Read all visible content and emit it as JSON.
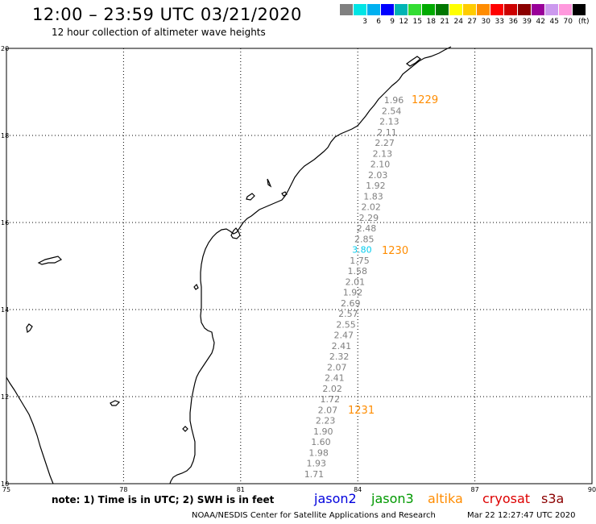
{
  "header": {
    "title": "12:00 – 23:59 UTC 03/21/2020",
    "subtitle": "12 hour collection of altimeter wave heights"
  },
  "legend": {
    "unit": "(ft)",
    "items": [
      {
        "label": "",
        "color": "#808080"
      },
      {
        "label": "3",
        "color": "#00e5e5"
      },
      {
        "label": "6",
        "color": "#00b0f0"
      },
      {
        "label": "9",
        "color": "#0000ff"
      },
      {
        "label": "12",
        "color": "#00b4b4"
      },
      {
        "label": "15",
        "color": "#33dd33"
      },
      {
        "label": "18",
        "color": "#00aa00"
      },
      {
        "label": "21",
        "color": "#007700"
      },
      {
        "label": "24",
        "color": "#ffff00"
      },
      {
        "label": "27",
        "color": "#ffcc00"
      },
      {
        "label": "30",
        "color": "#ff8c00"
      },
      {
        "label": "33",
        "color": "#ff0000"
      },
      {
        "label": "36",
        "color": "#cc0000"
      },
      {
        "label": "39",
        "color": "#8b0000"
      },
      {
        "label": "42",
        "color": "#990099"
      },
      {
        "label": "45",
        "color": "#cc99ee"
      },
      {
        "label": "70",
        "color": "#ff99dd"
      },
      {
        "label": "",
        "color": "#000000"
      }
    ]
  },
  "map": {
    "lon_ticks": [
      "75",
      "78",
      "81",
      "84",
      "87",
      "90"
    ],
    "lat_ticks": [
      "10",
      "12",
      "14",
      "16",
      "18",
      "20"
    ],
    "lon_range": [
      75,
      90
    ],
    "lat_range": [
      10,
      20
    ],
    "pass_labels": [
      {
        "text": "1229",
        "color": "#ff8c00"
      },
      {
        "text": "1230",
        "color": "#ff8c00"
      },
      {
        "text": "1231",
        "color": "#ff8c00"
      }
    ],
    "track_values": [
      {
        "text": "1.96",
        "color": "#808080"
      },
      {
        "text": "2.54",
        "color": "#808080"
      },
      {
        "text": "2.13",
        "color": "#808080"
      },
      {
        "text": "2.11",
        "color": "#808080"
      },
      {
        "text": "2.27",
        "color": "#808080"
      },
      {
        "text": "2.13",
        "color": "#808080"
      },
      {
        "text": "2.10",
        "color": "#808080"
      },
      {
        "text": "2.03",
        "color": "#808080"
      },
      {
        "text": "1.92",
        "color": "#808080"
      },
      {
        "text": "1.83",
        "color": "#808080"
      },
      {
        "text": "2.02",
        "color": "#808080"
      },
      {
        "text": "2.29",
        "color": "#808080"
      },
      {
        "text": "2.48",
        "color": "#808080"
      },
      {
        "text": "2.85",
        "color": "#808080"
      },
      {
        "text": "3.80",
        "color": "#00ccee"
      },
      {
        "text": "1.75",
        "color": "#808080"
      },
      {
        "text": "1.58",
        "color": "#808080"
      },
      {
        "text": "2.01",
        "color": "#808080"
      },
      {
        "text": "1.92",
        "color": "#808080"
      },
      {
        "text": "2.69",
        "color": "#808080"
      },
      {
        "text": "2.57",
        "color": "#808080"
      },
      {
        "text": "2.55",
        "color": "#808080"
      },
      {
        "text": "2.47",
        "color": "#808080"
      },
      {
        "text": "2.41",
        "color": "#808080"
      },
      {
        "text": "2.32",
        "color": "#808080"
      },
      {
        "text": "2.07",
        "color": "#808080"
      },
      {
        "text": "2.41",
        "color": "#808080"
      },
      {
        "text": "2.02",
        "color": "#808080"
      },
      {
        "text": "1.72",
        "color": "#808080"
      },
      {
        "text": "2.07",
        "color": "#808080"
      },
      {
        "text": "2.23",
        "color": "#808080"
      },
      {
        "text": "1.90",
        "color": "#808080"
      },
      {
        "text": "1.60",
        "color": "#808080"
      },
      {
        "text": "1.98",
        "color": "#808080"
      },
      {
        "text": "1.93",
        "color": "#808080"
      },
      {
        "text": "1.71",
        "color": "#808080"
      }
    ]
  },
  "footer": {
    "note": "note: 1) Time is in UTC; 2) SWH is in feet",
    "satellites": [
      {
        "name": "jason2",
        "color": "#0000dd"
      },
      {
        "name": "jason3",
        "color": "#009900"
      },
      {
        "name": "altika",
        "color": "#ff8c00"
      },
      {
        "name": "cryosat",
        "color": "#dd0000"
      },
      {
        "name": "s3a",
        "color": "#8b0000"
      }
    ],
    "credit": "NOAA/NESDIS Center for Satellite Applications and Research",
    "generated": "Mar 22 12:27:47 UTC 2020"
  }
}
